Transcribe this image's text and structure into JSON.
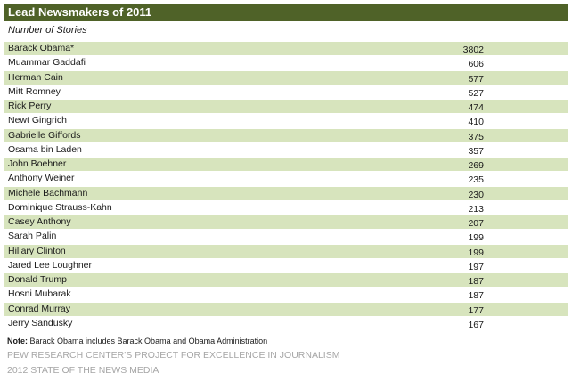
{
  "title": "Lead Newsmakers of 2011",
  "subtitle": "Number of Stories",
  "rows": [
    {
      "name": "Barack Obama*",
      "value": "3802"
    },
    {
      "name": "Muammar Gaddafi",
      "value": "606"
    },
    {
      "name": "Herman Cain",
      "value": "577"
    },
    {
      "name": "Mitt Romney",
      "value": "527"
    },
    {
      "name": "Rick Perry",
      "value": "474"
    },
    {
      "name": "Newt Gingrich",
      "value": "410"
    },
    {
      "name": "Gabrielle Giffords",
      "value": "375"
    },
    {
      "name": "Osama bin Laden",
      "value": "357"
    },
    {
      "name": "John Boehner",
      "value": "269"
    },
    {
      "name": "Anthony Weiner",
      "value": "235"
    },
    {
      "name": "Michele Bachmann",
      "value": "230"
    },
    {
      "name": "Dominique Strauss-Kahn",
      "value": "213"
    },
    {
      "name": "Casey Anthony",
      "value": "207"
    },
    {
      "name": "Sarah Palin",
      "value": "199"
    },
    {
      "name": "Hillary Clinton",
      "value": "199"
    },
    {
      "name": "Jared Lee Loughner",
      "value": "197"
    },
    {
      "name": "Donald Trump",
      "value": "187"
    },
    {
      "name": "Hosni Mubarak",
      "value": "187"
    },
    {
      "name": "Conrad Murray",
      "value": "177"
    },
    {
      "name": "Jerry Sandusky",
      "value": "167"
    }
  ],
  "note": {
    "label": "Note:",
    "text": " Barack Obama includes Barack Obama and Obama Administration"
  },
  "source_line_1": "PEW RESEARCH CENTER'S PROJECT FOR EXCELLENCE IN JOURNALISM",
  "source_line_2": "2012 STATE OF THE NEWS MEDIA",
  "colors": {
    "title_bar": "#4f6228",
    "shaded_row": "#d7e4bd",
    "source_text": "#a6a6a6"
  }
}
